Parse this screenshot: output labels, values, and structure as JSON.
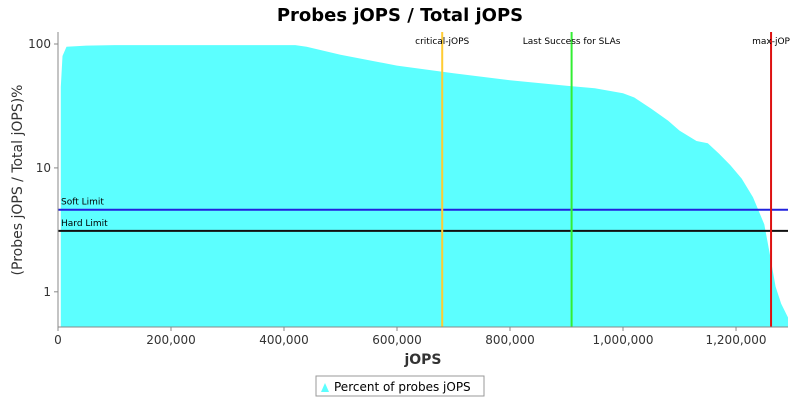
{
  "chart_data": {
    "type": "area",
    "title": "Probes jOPS / Total jOPS",
    "xlabel": "jOPS",
    "ylabel": "(Probes jOPS / Total jOPS)%",
    "y_scale": "log",
    "xlim": [
      0,
      1292000
    ],
    "ylim": [
      0.52,
      125
    ],
    "x_ticks": [
      {
        "value": 0,
        "label": "0"
      },
      {
        "value": 200000,
        "label": "200,000"
      },
      {
        "value": 400000,
        "label": "400,000"
      },
      {
        "value": 600000,
        "label": "600,000"
      },
      {
        "value": 800000,
        "label": "800,000"
      },
      {
        "value": 1000000,
        "label": "1,000,000"
      },
      {
        "value": 1200000,
        "label": "1,200,000"
      }
    ],
    "y_ticks": [
      {
        "value": 1,
        "label": "1"
      },
      {
        "value": 10,
        "label": "10"
      },
      {
        "value": 100,
        "label": "100"
      }
    ],
    "series": [
      {
        "name": "Percent of probes jOPS",
        "color": "#5cffff",
        "x": [
          5000,
          8000,
          15000,
          50000,
          100000,
          200000,
          300000,
          420000,
          440000,
          500000,
          600000,
          700000,
          800000,
          900000,
          950000,
          1000000,
          1020000,
          1050000,
          1080000,
          1100000,
          1130000,
          1150000,
          1170000,
          1190000,
          1210000,
          1230000,
          1250000,
          1260000,
          1270000,
          1280000,
          1292000
        ],
        "y": [
          45,
          80,
          95,
          97,
          98,
          98,
          98,
          98,
          95,
          82,
          67,
          58,
          51,
          46,
          44,
          40,
          37,
          30,
          24,
          20,
          16.5,
          15.8,
          13,
          10.5,
          8.2,
          5.8,
          3.5,
          2,
          1.1,
          0.8,
          0.62
        ]
      }
    ],
    "vertical_markers": [
      {
        "label": "critical-jOPS",
        "x": 680000,
        "color": "#ffcc33"
      },
      {
        "label": "Last Success for SLAs",
        "x": 909000,
        "color": "#33ee33"
      },
      {
        "label": "max-jOP",
        "x": 1262000,
        "color": "#dd1111"
      }
    ],
    "horizontal_markers": [
      {
        "label": "Soft Limit",
        "y": 4.6,
        "color": "#2222dd"
      },
      {
        "label": "Hard Limit",
        "y": 3.1,
        "color": "#111111"
      }
    ],
    "legend": {
      "position": "bottom",
      "label": "Percent of probes jOPS"
    },
    "grid": false
  }
}
